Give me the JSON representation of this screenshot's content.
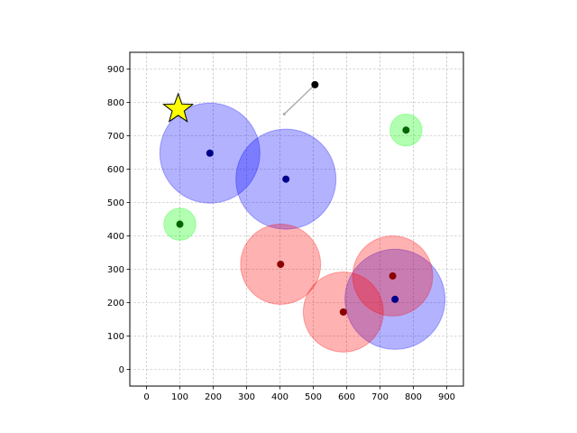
{
  "chart_data": {
    "type": "scatter",
    "title": "",
    "xlabel": "",
    "ylabel": "",
    "xlim": [
      -50,
      950
    ],
    "ylim": [
      -50,
      950
    ],
    "grid": true,
    "x_ticks": [
      0,
      100,
      200,
      300,
      400,
      500,
      600,
      700,
      800,
      900
    ],
    "y_ticks": [
      0,
      100,
      200,
      300,
      400,
      500,
      600,
      700,
      800,
      900
    ],
    "colors": {
      "blue": "#0000ff",
      "red": "#ff0000",
      "green": "#00ff00",
      "dark_blue": "#00008b",
      "dark_red": "#8b0000",
      "dark_green": "#006400",
      "star": "#ffff00",
      "trail": "#b0b0b0"
    },
    "circles": [
      {
        "x": 190,
        "y": 648,
        "r": 150,
        "color": "blue"
      },
      {
        "x": 418,
        "y": 570,
        "r": 150,
        "color": "blue"
      },
      {
        "x": 745,
        "y": 210,
        "r": 150,
        "color": "blue"
      },
      {
        "x": 402,
        "y": 315,
        "r": 120,
        "color": "red"
      },
      {
        "x": 590,
        "y": 172,
        "r": 120,
        "color": "red"
      },
      {
        "x": 738,
        "y": 280,
        "r": 120,
        "color": "red"
      },
      {
        "x": 100,
        "y": 435,
        "r": 48,
        "color": "green"
      },
      {
        "x": 778,
        "y": 717,
        "r": 48,
        "color": "green"
      }
    ],
    "points": [
      {
        "x": 190,
        "y": 648,
        "color": "dark_blue"
      },
      {
        "x": 418,
        "y": 570,
        "color": "dark_blue"
      },
      {
        "x": 745,
        "y": 210,
        "color": "dark_blue"
      },
      {
        "x": 402,
        "y": 315,
        "color": "dark_red"
      },
      {
        "x": 590,
        "y": 172,
        "color": "dark_red"
      },
      {
        "x": 738,
        "y": 280,
        "color": "dark_red"
      },
      {
        "x": 100,
        "y": 435,
        "color": "dark_green"
      },
      {
        "x": 778,
        "y": 717,
        "color": "dark_green"
      }
    ],
    "agent": {
      "x": 505,
      "y": 853,
      "trail_from": {
        "x": 413,
        "y": 765
      }
    },
    "goal_star": {
      "x": 95,
      "y": 780
    }
  }
}
